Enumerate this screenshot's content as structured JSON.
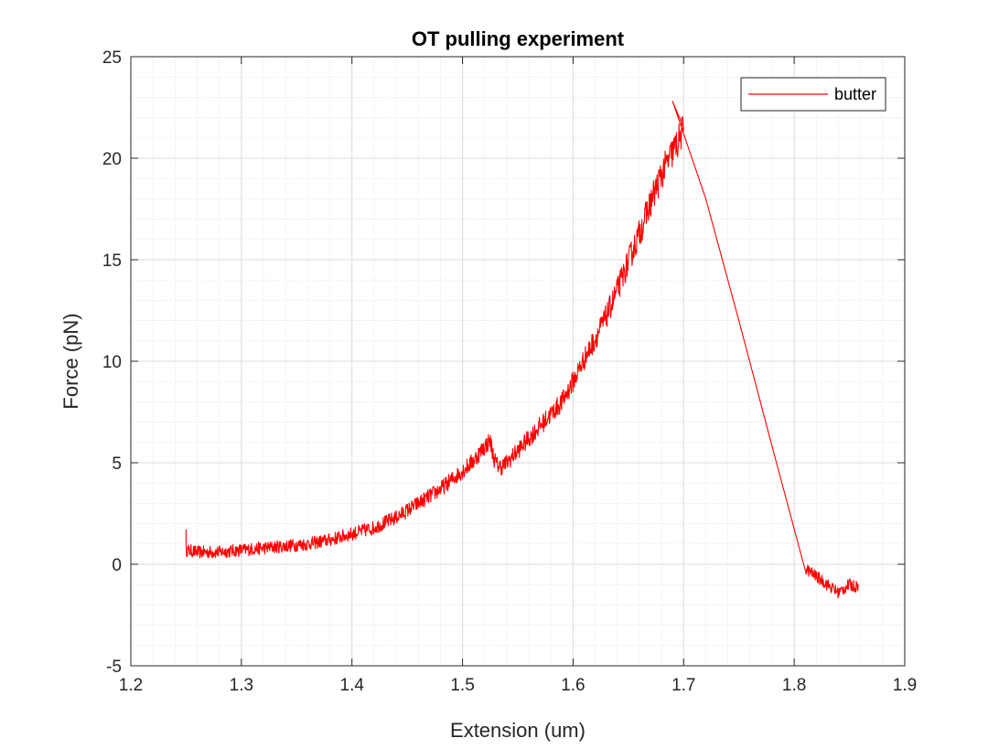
{
  "chart_data": {
    "type": "line",
    "title": "OT pulling experiment",
    "xlabel": "Extension (um)",
    "ylabel": "Force (pN)",
    "xlim": [
      1.2,
      1.9
    ],
    "ylim": [
      -5,
      25
    ],
    "x_ticks": [
      1.2,
      1.3,
      1.4,
      1.5,
      1.6,
      1.7,
      1.8,
      1.9
    ],
    "y_ticks": [
      -5,
      0,
      5,
      10,
      15,
      20,
      25
    ],
    "x_tick_labels": [
      "1.2",
      "1.3",
      "1.4",
      "1.5",
      "1.6",
      "1.7",
      "1.8",
      "1.9"
    ],
    "y_tick_labels": [
      "-5",
      "0",
      "5",
      "10",
      "15",
      "20",
      "25"
    ],
    "grid": true,
    "minor_grid": true,
    "legend": {
      "location": "top-right"
    },
    "series": [
      {
        "name": "butter",
        "color": "#ff0000",
        "x": [
          1.25,
          1.25,
          1.26,
          1.28,
          1.3,
          1.32,
          1.34,
          1.36,
          1.38,
          1.4,
          1.42,
          1.44,
          1.46,
          1.48,
          1.5,
          1.51,
          1.52,
          1.525,
          1.528,
          1.531,
          1.535,
          1.54,
          1.55,
          1.56,
          1.57,
          1.58,
          1.59,
          1.6,
          1.61,
          1.62,
          1.63,
          1.64,
          1.65,
          1.66,
          1.67,
          1.68,
          1.69,
          1.695,
          1.7,
          1.69,
          1.72,
          1.75,
          1.78,
          1.81,
          1.84,
          1.845,
          1.85,
          1.855,
          1.858
        ],
        "y": [
          2.0,
          0.7,
          0.6,
          0.6,
          0.7,
          0.8,
          0.9,
          1.0,
          1.2,
          1.5,
          1.8,
          2.3,
          3.0,
          3.7,
          4.6,
          5.1,
          5.8,
          6.1,
          5.3,
          4.9,
          4.8,
          5.0,
          5.6,
          6.2,
          6.8,
          7.4,
          8.0,
          9.0,
          10.1,
          11.1,
          12.2,
          13.5,
          14.9,
          16.3,
          17.8,
          19.2,
          20.3,
          20.8,
          21.5,
          22.8,
          18.0,
          12.0,
          5.8,
          -0.2,
          -1.4,
          -1.2,
          -1.0,
          -1.1,
          -1.0
        ]
      }
    ]
  }
}
